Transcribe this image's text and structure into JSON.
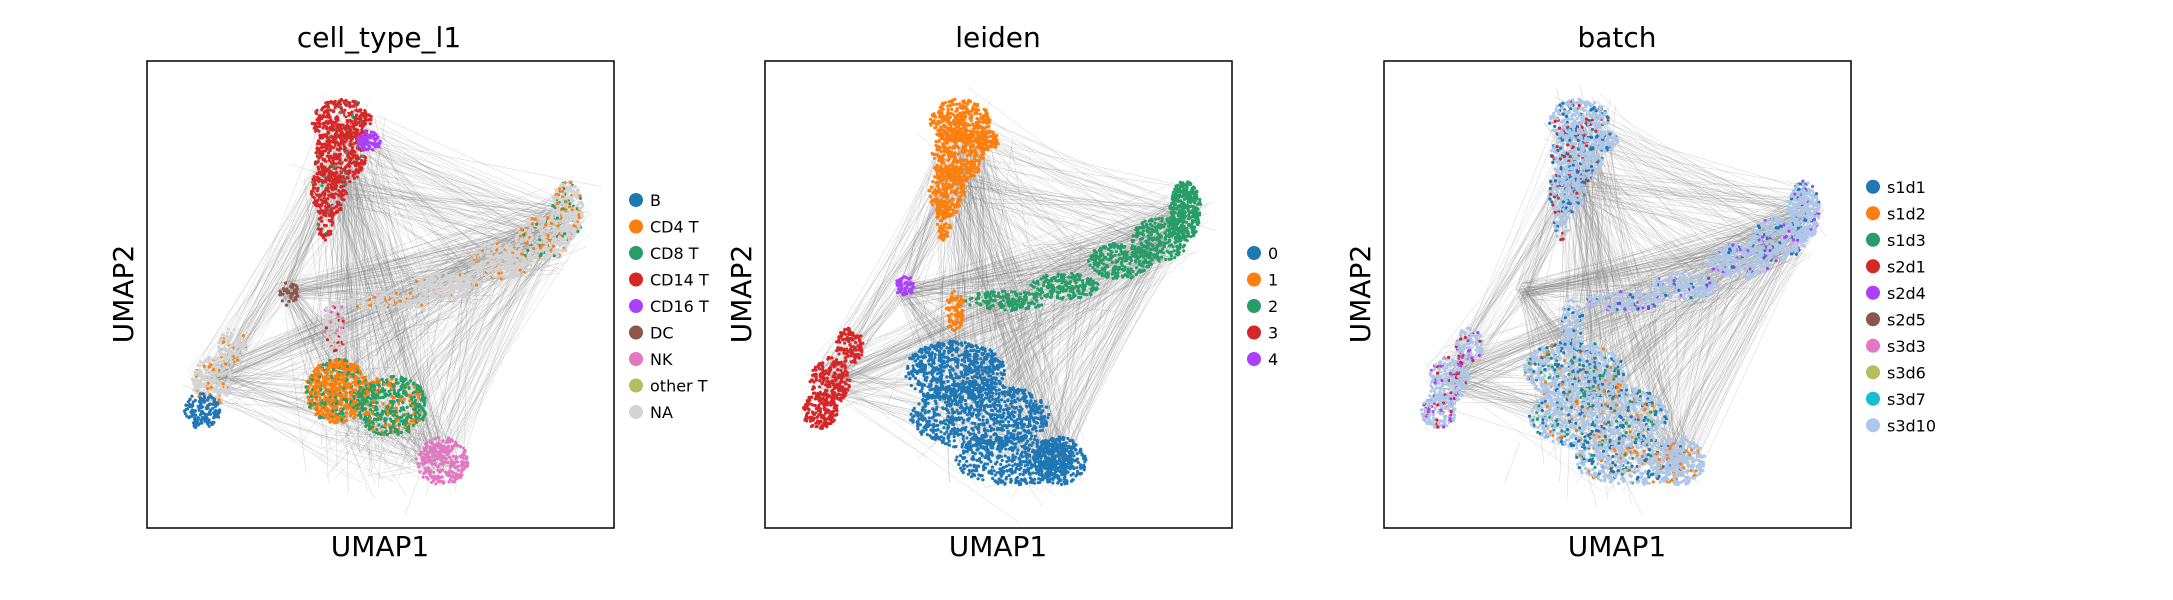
{
  "panels": [
    {
      "title": "cell_type_l1",
      "xlabel": "UMAP1",
      "ylabel": "UMAP2",
      "legend": [
        {
          "label": "B",
          "color": "#1f77b4"
        },
        {
          "label": "CD4 T",
          "color": "#ff7f0e"
        },
        {
          "label": "CD8 T",
          "color": "#279e68"
        },
        {
          "label": "CD14 T",
          "color": "#d62728"
        },
        {
          "label": "CD16 T",
          "color": "#aa40fc"
        },
        {
          "label": "DC",
          "color": "#8c564b"
        },
        {
          "label": "NK",
          "color": "#e377c2"
        },
        {
          "label": "other T",
          "color": "#b5bd61"
        },
        {
          "label": "NA",
          "color": "#d3d3d3"
        }
      ]
    },
    {
      "title": "leiden",
      "xlabel": "UMAP1",
      "ylabel": "UMAP2",
      "legend": [
        {
          "label": "0",
          "color": "#1f77b4"
        },
        {
          "label": "1",
          "color": "#ff7f0e"
        },
        {
          "label": "2",
          "color": "#279e68"
        },
        {
          "label": "3",
          "color": "#d62728"
        },
        {
          "label": "4",
          "color": "#aa40fc"
        }
      ]
    },
    {
      "title": "batch",
      "xlabel": "UMAP1",
      "ylabel": "UMAP2",
      "legend": [
        {
          "label": "s1d1",
          "color": "#1f77b4"
        },
        {
          "label": "s1d2",
          "color": "#ff7f0e"
        },
        {
          "label": "s1d3",
          "color": "#279e68"
        },
        {
          "label": "s2d1",
          "color": "#d62728"
        },
        {
          "label": "s2d4",
          "color": "#aa40fc"
        },
        {
          "label": "s2d5",
          "color": "#8c564b"
        },
        {
          "label": "s3d3",
          "color": "#e377c2"
        },
        {
          "label": "s3d6",
          "color": "#b5bd61"
        },
        {
          "label": "s3d7",
          "color": "#17becf"
        },
        {
          "label": "s3d10",
          "color": "#aec7e8"
        }
      ]
    }
  ],
  "chart_data": [
    {
      "type": "scatter",
      "title": "cell_type_l1",
      "xlabel": "UMAP1",
      "ylabel": "UMAP2",
      "grid": false,
      "ticks": false,
      "legend_position": "right",
      "edges_drawn": true,
      "edge_color": "#808080",
      "categories": [
        "B",
        "CD4 T",
        "CD8 T",
        "CD14 T",
        "CD16 T",
        "DC",
        "NK",
        "other T",
        "NA"
      ]
    },
    {
      "type": "scatter",
      "title": "leiden",
      "xlabel": "UMAP1",
      "ylabel": "UMAP2",
      "grid": false,
      "ticks": false,
      "legend_position": "right",
      "edges_drawn": true,
      "edge_color": "#808080",
      "categories": [
        "0",
        "1",
        "2",
        "3",
        "4"
      ]
    },
    {
      "type": "scatter",
      "title": "batch",
      "xlabel": "UMAP1",
      "ylabel": "UMAP2",
      "grid": false,
      "ticks": false,
      "legend_position": "right",
      "edges_drawn": true,
      "edge_color": "#808080",
      "categories": [
        "s1d1",
        "s1d2",
        "s1d3",
        "s2d1",
        "s2d4",
        "s2d5",
        "s3d3",
        "s3d6",
        "s3d7",
        "s3d10"
      ]
    }
  ]
}
